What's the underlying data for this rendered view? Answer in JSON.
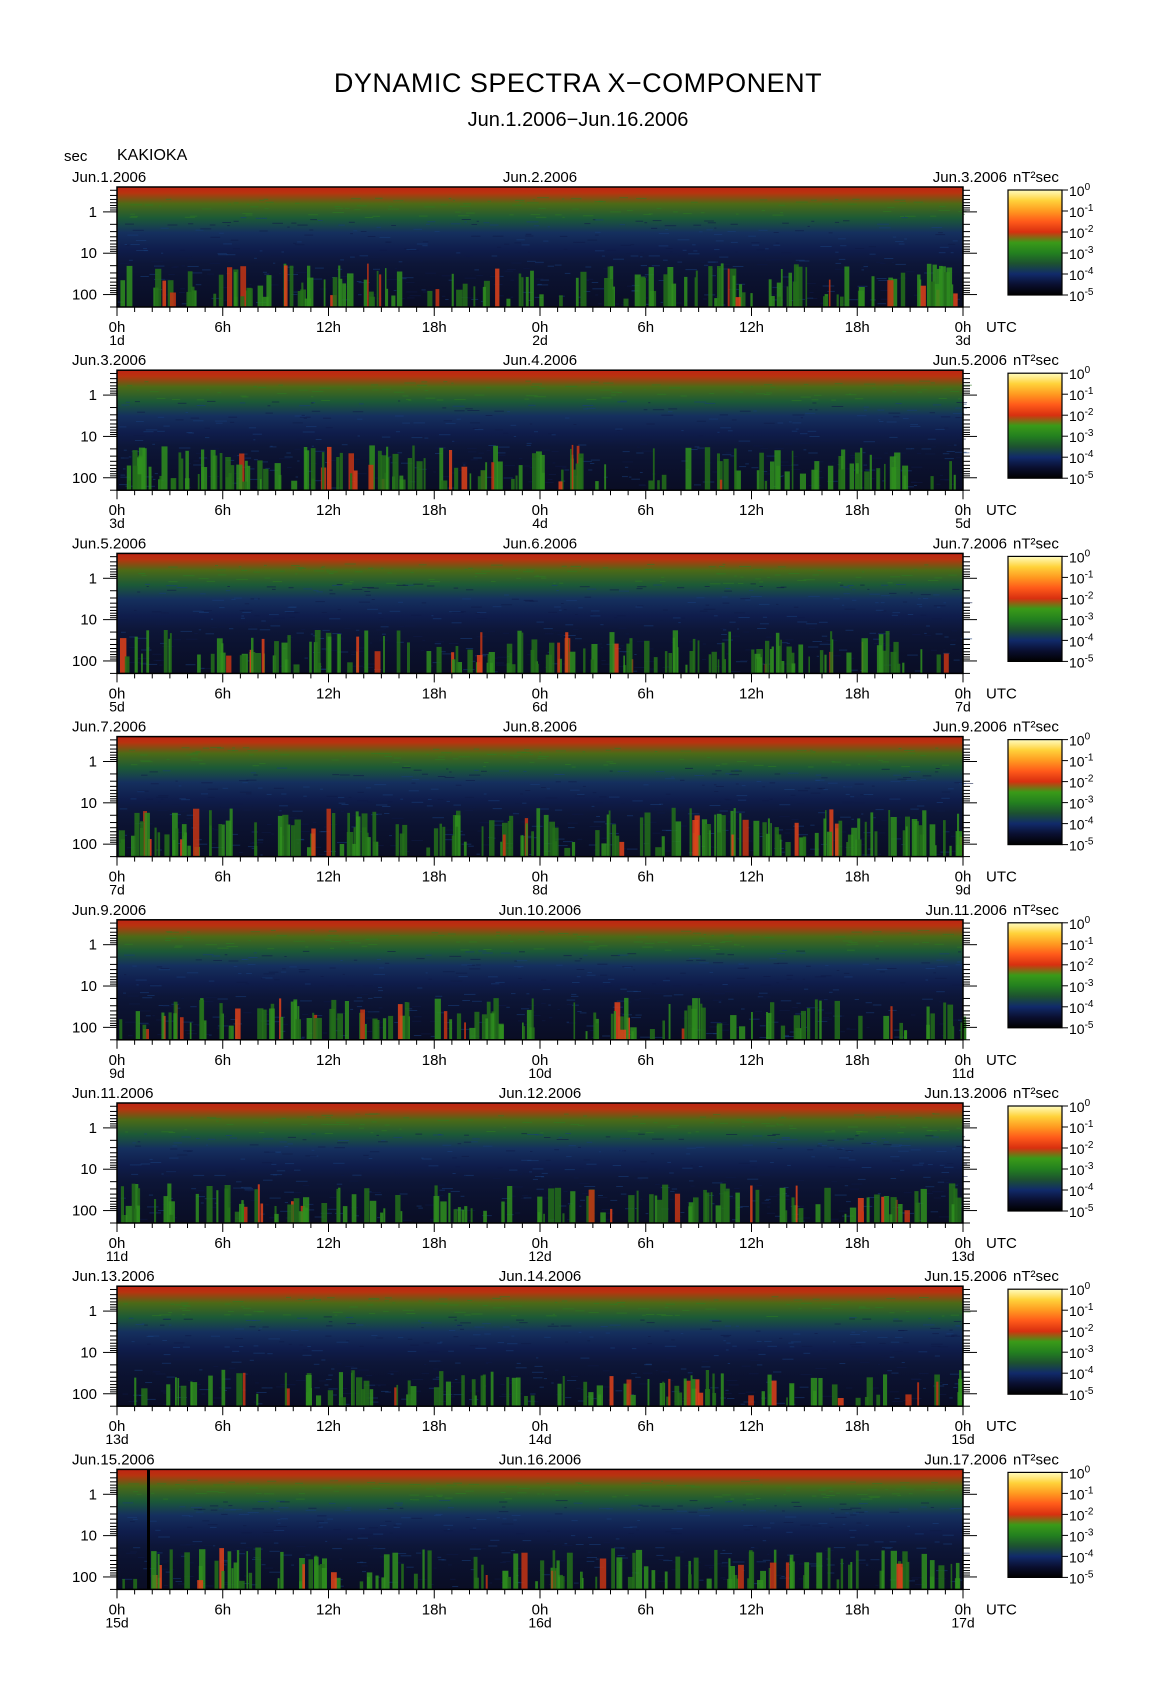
{
  "title": "DYNAMIC SPECTRA X−COMPONENT",
  "subtitle": "Jun.1.2006−Jun.16.2006",
  "unit_label": "sec",
  "station": "KAKIOKA",
  "colorbar_unit": "nT²sec",
  "colorbar_stops": [
    "#000000",
    "#0a0f30",
    "#112a6a",
    "#1d5230",
    "#23801f",
    "#3a9a18",
    "#d83010",
    "#ff5a1a",
    "#ff9a20",
    "#ffd23a",
    "#fffcc0"
  ],
  "colors": {
    "background": "#ffffff",
    "frame": "#000000"
  },
  "chart_data": {
    "type": "heatmap",
    "title": "DYNAMIC SPECTRA X−COMPONENT",
    "subtitle": "Jun.1.2006−Jun.16.2006",
    "station": "KAKIOKA",
    "ylabel": "sec",
    "y_scale": "log",
    "y_reversed": true,
    "y_ticks": [
      "1",
      "10",
      "100"
    ],
    "x_ticks": [
      "0h",
      "6h",
      "12h",
      "18h",
      "0h",
      "6h",
      "12h",
      "18h",
      "0h"
    ],
    "x_unit": "UTC",
    "colorbar": {
      "unit": "nT²sec",
      "scale": "log",
      "range": [
        1e-05,
        1
      ],
      "tick_exponents": [
        "0",
        "-1",
        "-2",
        "-3",
        "-4",
        "-5"
      ]
    },
    "panels": [
      {
        "left_date": "Jun.1.2006",
        "center_date": "Jun.2.2006",
        "right_date": "Jun.3.2006",
        "day_labels": [
          "1d",
          "2d",
          "3d"
        ],
        "activity": 0.55,
        "spikes": [],
        "seed": 11
      },
      {
        "left_date": "Jun.3.2006",
        "center_date": "Jun.4.2006",
        "right_date": "Jun.5.2006",
        "day_labels": [
          "3d",
          "4d",
          "5d"
        ],
        "activity": 0.6,
        "spikes": [],
        "seed": 23
      },
      {
        "left_date": "Jun.5.2006",
        "center_date": "Jun.6.2006",
        "right_date": "Jun.7.2006",
        "day_labels": [
          "5d",
          "6d",
          "7d"
        ],
        "activity": 0.55,
        "spikes": [],
        "seed": 37
      },
      {
        "left_date": "Jun.7.2006",
        "center_date": "Jun.8.2006",
        "right_date": "Jun.9.2006",
        "day_labels": [
          "7d",
          "8d",
          "9d"
        ],
        "activity": 0.7,
        "spikes": [],
        "seed": 41
      },
      {
        "left_date": "Jun.9.2006",
        "center_date": "Jun.10.2006",
        "right_date": "Jun.11.2006",
        "day_labels": [
          "9d",
          "10d",
          "11d"
        ],
        "activity": 0.5,
        "spikes": [],
        "seed": 53
      },
      {
        "left_date": "Jun.11.2006",
        "center_date": "Jun.12.2006",
        "right_date": "Jun.13.2006",
        "day_labels": [
          "11d",
          "12d",
          "13d"
        ],
        "activity": 0.45,
        "spikes": [],
        "seed": 67
      },
      {
        "left_date": "Jun.13.2006",
        "center_date": "Jun.14.2006",
        "right_date": "Jun.15.2006",
        "day_labels": [
          "13d",
          "14d",
          "15d"
        ],
        "activity": 0.35,
        "spikes": [],
        "seed": 71
      },
      {
        "left_date": "Jun.15.2006",
        "center_date": "Jun.16.2006",
        "right_date": "Jun.17.2006",
        "day_labels": [
          "15d",
          "16d",
          "17d"
        ],
        "activity": 0.5,
        "spikes": [
          1.7
        ],
        "seed": 83
      }
    ]
  }
}
